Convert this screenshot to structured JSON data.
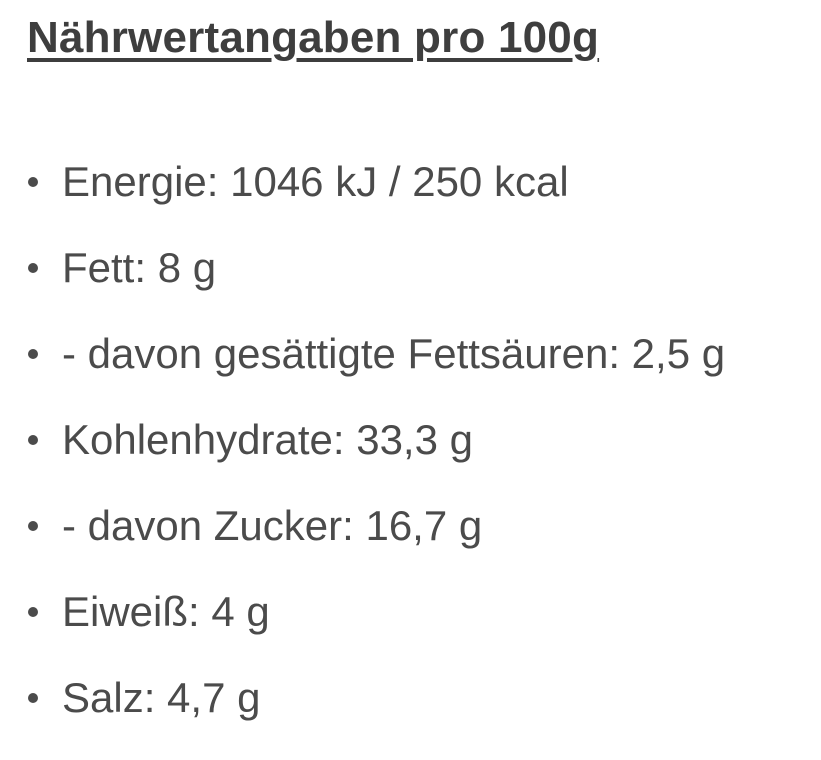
{
  "page": {
    "title": "Nährwertangaben pro 100g"
  },
  "nutrition": {
    "per": "100g",
    "items": [
      {
        "label": "Energie",
        "value": "1046 kJ / 250 kcal",
        "text": "Energie: 1046 kJ / 250 kcal"
      },
      {
        "label": "Fett",
        "value": "8 g",
        "text": "Fett: 8 g"
      },
      {
        "label": "- davon gesättigte Fettsäuren",
        "value": "2,5 g",
        "text": "- davon gesättigte Fettsäuren: 2,5 g"
      },
      {
        "label": "Kohlenhydrate",
        "value": "33,3 g",
        "text": "Kohlenhydrate: 33,3 g"
      },
      {
        "label": "- davon Zucker",
        "value": "16,7 g",
        "text": "- davon Zucker: 16,7 g"
      },
      {
        "label": "Eiweiß",
        "value": "4 g",
        "text": "Eiweiß: 4 g"
      },
      {
        "label": "Salz",
        "value": "4,7 g",
        "text": "Salz: 4,7 g"
      }
    ]
  },
  "colors": {
    "background": "#ffffff",
    "heading_text": "#3e3e3e",
    "body_text": "#4b4b4b"
  }
}
